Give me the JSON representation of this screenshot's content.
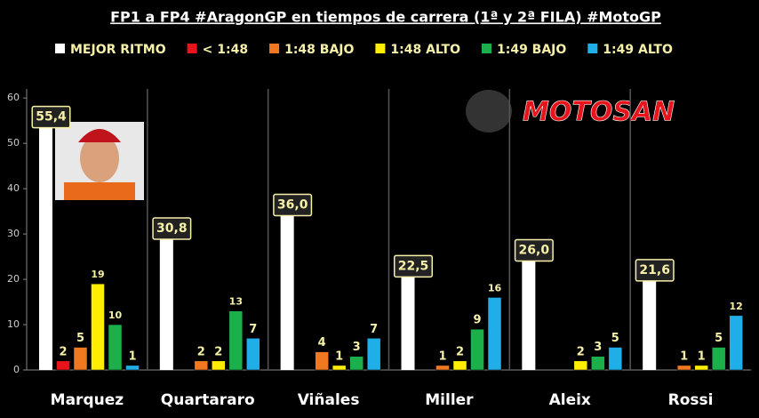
{
  "chart_data": {
    "type": "bar",
    "title": "FP1 a FP4 #AragonGP en tiempos de carrera (1ª y 2ª FILA) #MotoGP",
    "logo": "MOTOSAN",
    "categories": [
      "Marquez",
      "Quartararo",
      "Viñales",
      "Miller",
      "Aleix",
      "Rossi"
    ],
    "series": [
      {
        "name": "MEJOR RITMO",
        "color": "#ffffff",
        "values": [
          55.4,
          30.8,
          36.0,
          22.5,
          26.0,
          21.6
        ],
        "value_labels": [
          "55,4",
          "30,8",
          "36,0",
          "22,5",
          "26,0",
          "21,6"
        ]
      },
      {
        "name": "< 1:48",
        "color": "#e8141c",
        "values": [
          2,
          null,
          null,
          null,
          null,
          null
        ]
      },
      {
        "name": "1:48 BAJO",
        "color": "#f07820",
        "values": [
          5,
          2,
          4,
          1,
          null,
          1
        ]
      },
      {
        "name": "1:48 ALTO",
        "color": "#ffee00",
        "values": [
          19,
          2,
          1,
          2,
          2,
          1
        ]
      },
      {
        "name": "1:49 BAJO",
        "color": "#1cb04a",
        "values": [
          10,
          13,
          3,
          9,
          3,
          5
        ]
      },
      {
        "name": "1:49 ALTO",
        "color": "#20aee8",
        "values": [
          1,
          7,
          7,
          16,
          5,
          12
        ]
      }
    ],
    "ylim": [
      0,
      62
    ],
    "yticks": [
      0,
      10,
      20,
      30,
      40,
      50,
      60
    ],
    "legend": "top",
    "grid": false
  }
}
